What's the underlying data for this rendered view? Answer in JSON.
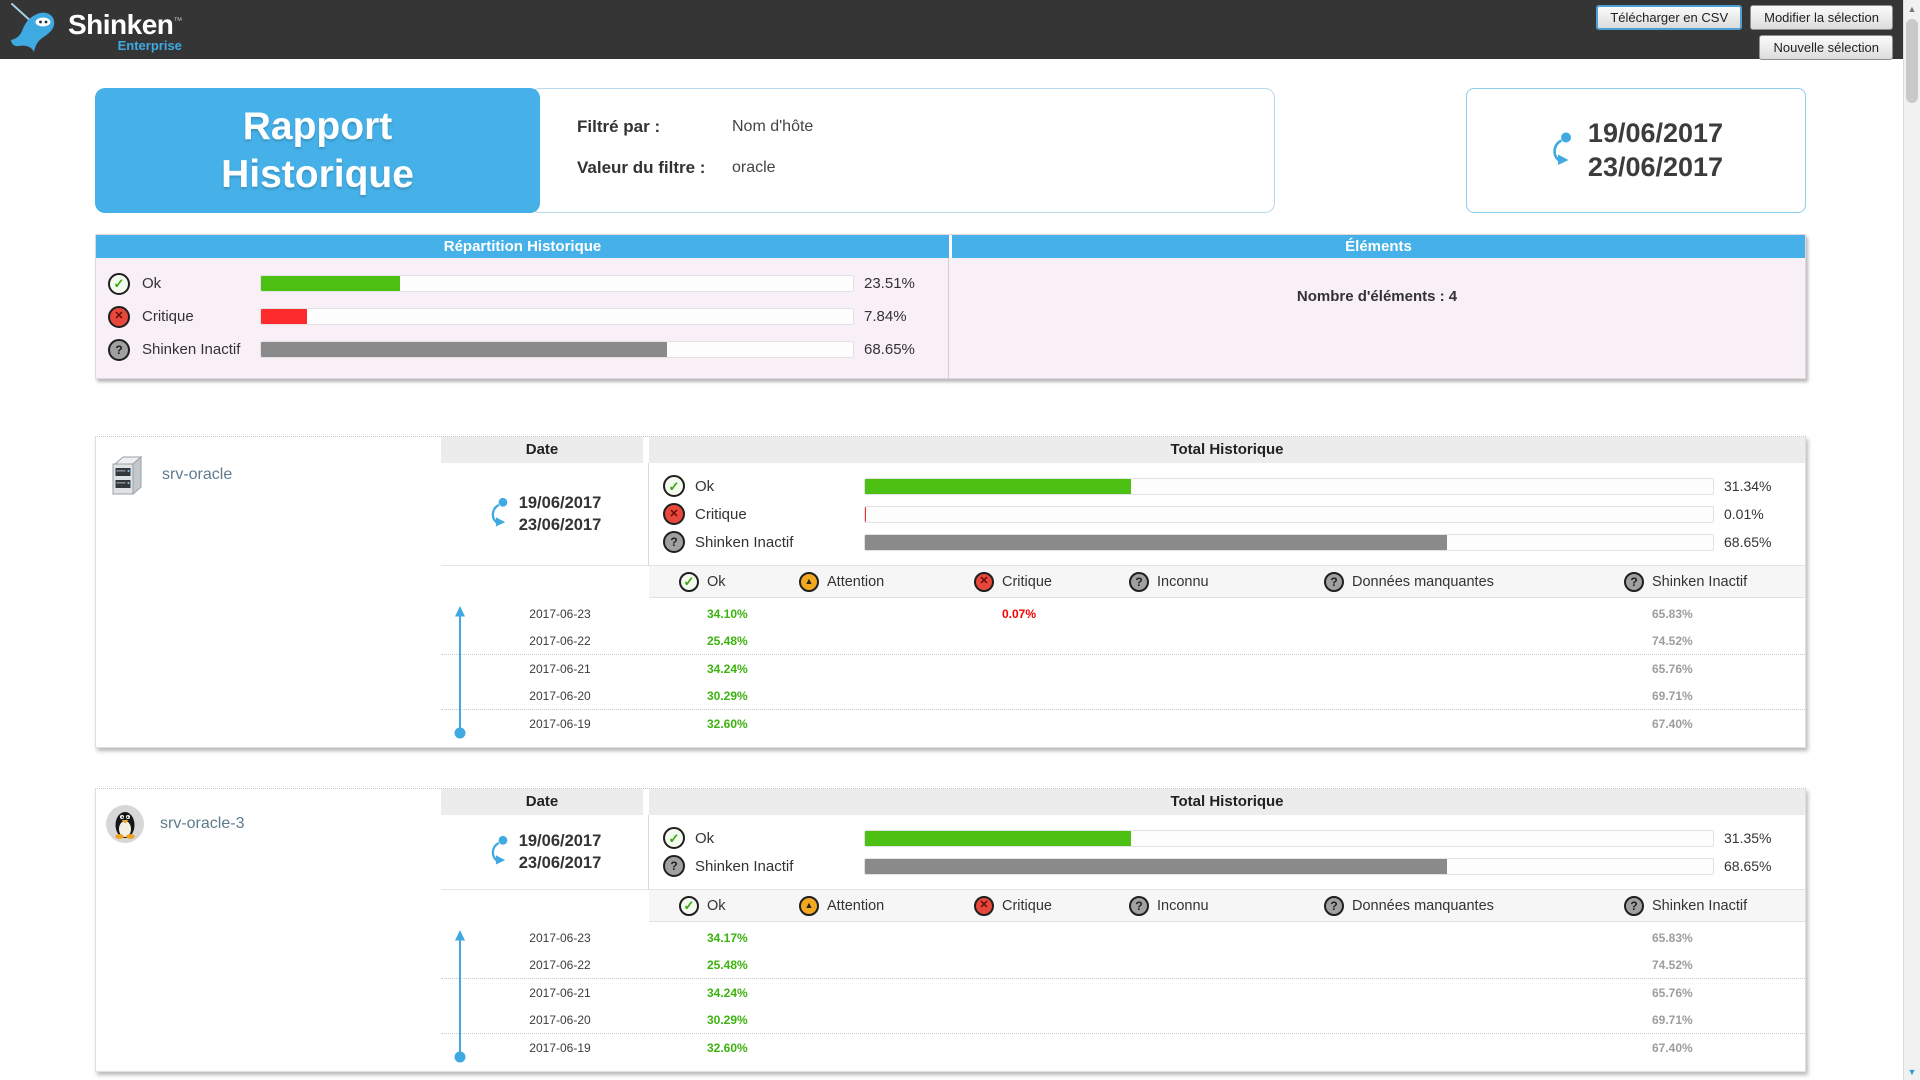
{
  "brand": {
    "name": "Shinken",
    "tm": "™",
    "subtitle": "Enterprise"
  },
  "toolbar": {
    "download_csv": "Télécharger en CSV",
    "modify_selection": "Modifier la sélection",
    "new_selection": "Nouvelle sélection"
  },
  "header": {
    "title_line1": "Rapport",
    "title_line2": "Historique",
    "filter_label": "Filtré par :",
    "filter_value": "Nom d'hôte",
    "filter_value_label": "Valeur du filtre :",
    "filter_value_text": "oracle",
    "date_start": "19/06/2017",
    "date_end": "23/06/2017"
  },
  "summary": {
    "left_title": "Répartition Historique",
    "right_title": "Éléments",
    "elements_count_label": "Nombre d'éléments : 4",
    "rows": [
      {
        "label": "Ok",
        "icon": "ok",
        "percent": 23.51,
        "display": "23.51%",
        "color": "#4cc114"
      },
      {
        "label": "Critique",
        "icon": "critical",
        "percent": 7.84,
        "display": "7.84%",
        "color": "#fd2b2b"
      },
      {
        "label": "Shinken Inactif",
        "icon": "question",
        "percent": 68.65,
        "display": "68.65%",
        "color": "#8a8a8a"
      }
    ]
  },
  "table_headers": {
    "date": "Date",
    "total": "Total Historique"
  },
  "status_legend": [
    {
      "label": "Ok",
      "icon": "ok"
    },
    {
      "label": "Attention",
      "icon": "warning"
    },
    {
      "label": "Critique",
      "icon": "critical"
    },
    {
      "label": "Inconnu",
      "icon": "question"
    },
    {
      "label": "Données manquantes",
      "icon": "question"
    },
    {
      "label": "Shinken Inactif",
      "icon": "question"
    }
  ],
  "colors": {
    "accent_blue": "#45b1e8",
    "ok_green": "#4cc114",
    "critical_red": "#fd2b2b",
    "inactive_gray": "#8a8a8a",
    "summary_bg": "#f9eff7"
  },
  "hosts": [
    {
      "name": "srv-oracle",
      "icon": "server",
      "date_start": "19/06/2017",
      "date_end": "23/06/2017",
      "totals": [
        {
          "label": "Ok",
          "icon": "ok",
          "percent": 31.34,
          "display": "31.34%",
          "color": "#4cc114"
        },
        {
          "label": "Critique",
          "icon": "critical",
          "percent": 0.01,
          "display": "0.01%",
          "color": "#fd2b2b"
        },
        {
          "label": "Shinken Inactif",
          "icon": "question",
          "percent": 68.65,
          "display": "68.65%",
          "color": "#8a8a8a"
        }
      ],
      "daily": [
        {
          "date": "2017-06-23",
          "ok": "34.10%",
          "critique": "0.07%",
          "inactif": "65.83%"
        },
        {
          "date": "2017-06-22",
          "ok": "25.48%",
          "inactif": "74.52%"
        },
        {
          "date": "2017-06-21",
          "ok": "34.24%",
          "inactif": "65.76%"
        },
        {
          "date": "2017-06-20",
          "ok": "30.29%",
          "inactif": "69.71%"
        },
        {
          "date": "2017-06-19",
          "ok": "32.60%",
          "inactif": "67.40%"
        }
      ]
    },
    {
      "name": "srv-oracle-3",
      "icon": "linux",
      "date_start": "19/06/2017",
      "date_end": "23/06/2017",
      "totals": [
        {
          "label": "Ok",
          "icon": "ok",
          "percent": 31.35,
          "display": "31.35%",
          "color": "#4cc114"
        },
        {
          "label": "Shinken Inactif",
          "icon": "question",
          "percent": 68.65,
          "display": "68.65%",
          "color": "#8a8a8a"
        }
      ],
      "daily": [
        {
          "date": "2017-06-23",
          "ok": "34.17%",
          "inactif": "65.83%"
        },
        {
          "date": "2017-06-22",
          "ok": "25.48%",
          "inactif": "74.52%"
        },
        {
          "date": "2017-06-21",
          "ok": "34.24%",
          "inactif": "65.76%"
        },
        {
          "date": "2017-06-20",
          "ok": "30.29%",
          "inactif": "69.71%"
        },
        {
          "date": "2017-06-19",
          "ok": "32.60%",
          "inactif": "67.40%"
        }
      ]
    }
  ]
}
